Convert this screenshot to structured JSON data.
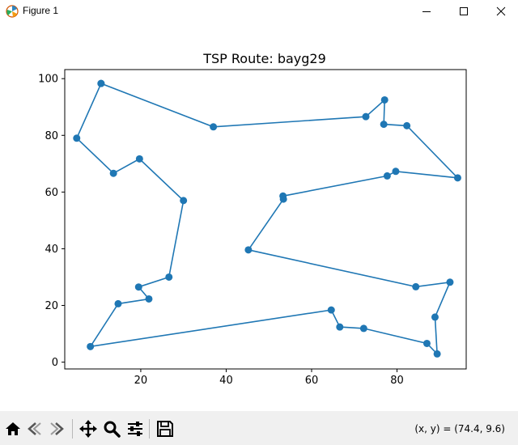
{
  "window": {
    "title": "Figure 1",
    "icons": {
      "app": "matplotlib-figure-icon",
      "minimize": "minimize-icon",
      "maximize": "maximize-icon",
      "close": "close-icon"
    }
  },
  "toolbar": {
    "buttons": [
      {
        "name": "home-button",
        "icon": "home-icon"
      },
      {
        "name": "back-button",
        "icon": "back-arrow-icon"
      },
      {
        "name": "forward-button",
        "icon": "forward-arrow-icon"
      },
      {
        "name": "pan-button",
        "icon": "move-icon"
      },
      {
        "name": "zoom-button",
        "icon": "magnifier-icon"
      },
      {
        "name": "configure-subplots-button",
        "icon": "sliders-icon"
      },
      {
        "name": "save-button",
        "icon": "floppy-disk-icon"
      }
    ],
    "coords_text": "(x, y) = (74.4, 9.6)"
  },
  "chart_data": {
    "type": "line",
    "title": "TSP Route: bayg29",
    "xlabel": "",
    "ylabel": "",
    "xlim": [
      2.2,
      96.2
    ],
    "ylim": [
      -2.4,
      103.2
    ],
    "xticks": [
      20,
      40,
      60,
      80
    ],
    "yticks": [
      0,
      20,
      40,
      60,
      80,
      100
    ],
    "grid": false,
    "marker": "circle",
    "color": "#1f77b4",
    "x": [
      10.7,
      5.0,
      13.6,
      19.7,
      30.0,
      26.6,
      19.5,
      21.9,
      14.7,
      8.2,
      64.6,
      66.6,
      72.2,
      87.0,
      89.4,
      88.9,
      92.4,
      84.4,
      45.2,
      53.4,
      53.3,
      77.7,
      79.7,
      94.2,
      82.3,
      76.9,
      77.1,
      72.7,
      37.0,
      10.7
    ],
    "y": [
      98.3,
      79.0,
      66.6,
      71.7,
      57.0,
      30.0,
      26.5,
      22.3,
      20.6,
      5.5,
      18.4,
      12.4,
      11.9,
      6.6,
      2.9,
      15.9,
      28.2,
      26.6,
      39.6,
      57.5,
      58.6,
      65.7,
      67.3,
      65.0,
      83.4,
      83.9,
      92.5,
      86.6,
      83.0,
      98.3
    ]
  }
}
